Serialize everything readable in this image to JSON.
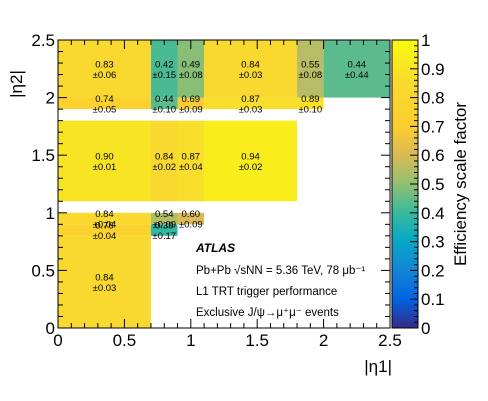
{
  "chart_data": {
    "type": "heatmap",
    "title": "",
    "xlabel": "|η1|",
    "ylabel": "|η2|",
    "colorbar_label": "Efficiency scale factor",
    "xlim": [
      0,
      2.5
    ],
    "ylim": [
      0,
      2.5
    ],
    "zlim": [
      0,
      1
    ],
    "x_ticks": [
      "0",
      "0.5",
      "1",
      "1.5",
      "2",
      "2.5"
    ],
    "y_ticks": [
      "0",
      "0.5",
      "1",
      "1.5",
      "2",
      "2.5"
    ],
    "z_ticks": [
      "0",
      "0.1",
      "0.2",
      "0.3",
      "0.4",
      "0.5",
      "0.6",
      "0.7",
      "0.8",
      "0.9",
      "1"
    ],
    "x_edges": [
      0,
      0.7,
      0.9,
      1.1,
      1.8,
      2.0,
      2.5
    ],
    "y_edges": [
      0,
      0.8,
      0.9,
      1.0,
      1.1,
      1.8,
      1.9,
      2.0,
      2.5
    ],
    "cells": [
      {
        "xi": 0,
        "yi": 0,
        "value": "0.84",
        "error": "±0.03"
      },
      {
        "xi": 0,
        "yi": 1,
        "value": "0.76",
        "error": "±0.04"
      },
      {
        "xi": 0,
        "yi": 2,
        "value": "0.84",
        "error": "±0.04"
      },
      {
        "xi": 0,
        "yi": 4,
        "value": "0.90",
        "error": "±0.01"
      },
      {
        "xi": 0,
        "yi": 6,
        "value": "0.74",
        "error": "±0.05"
      },
      {
        "xi": 0,
        "yi": 7,
        "value": "0.83",
        "error": "±0.06"
      },
      {
        "xi": 1,
        "yi": 1,
        "value": "0.39",
        "error": "±0.17"
      },
      {
        "xi": 1,
        "yi": 2,
        "value": "0.54",
        "error": "±0.09"
      },
      {
        "xi": 1,
        "yi": 4,
        "value": "0.84",
        "error": "±0.02"
      },
      {
        "xi": 1,
        "yi": 6,
        "value": "0.44",
        "error": "±0.10"
      },
      {
        "xi": 1,
        "yi": 7,
        "value": "0.42",
        "error": "±0.15"
      },
      {
        "xi": 2,
        "yi": 2,
        "value": "0.60",
        "error": "±0.09"
      },
      {
        "xi": 2,
        "yi": 4,
        "value": "0.87",
        "error": "±0.04"
      },
      {
        "xi": 2,
        "yi": 6,
        "value": "0.69",
        "error": "±0.09"
      },
      {
        "xi": 2,
        "yi": 7,
        "value": "0.49",
        "error": "±0.08"
      },
      {
        "xi": 3,
        "yi": 4,
        "value": "0.94",
        "error": "±0.02"
      },
      {
        "xi": 3,
        "yi": 6,
        "value": "0.87",
        "error": "±0.03"
      },
      {
        "xi": 3,
        "yi": 7,
        "value": "0.84",
        "error": "±0.03"
      },
      {
        "xi": 4,
        "yi": 6,
        "value": "0.89",
        "error": "±0.10"
      },
      {
        "xi": 4,
        "yi": 7,
        "value": "0.55",
        "error": "±0.08"
      },
      {
        "xi": 5,
        "yi": 7,
        "value": "0.44",
        "error": "±0.44"
      }
    ],
    "annotation": {
      "experiment": "ATLAS",
      "lines": [
        "Pb+Pb √sNN = 5.36 TeV, 78 μb⁻¹",
        "L1 TRT trigger performance",
        "Exclusive J/ψ→μ⁺μ⁻ events"
      ]
    }
  }
}
